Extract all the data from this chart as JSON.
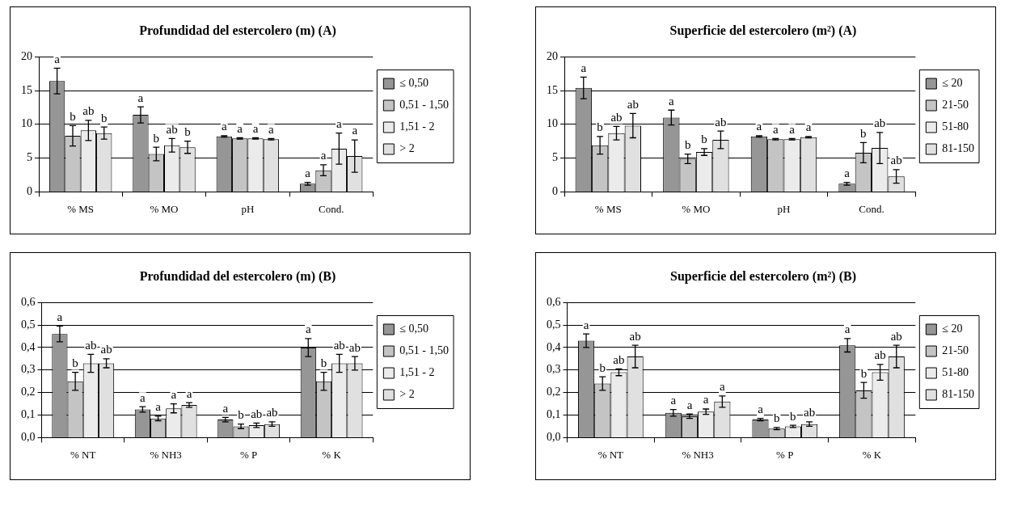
{
  "chart_data": [
    {
      "type": "bar",
      "title": "Profundidad del estercolero (m) (A)",
      "categories": [
        "% MS",
        "% MO",
        "pH",
        "Cond."
      ],
      "ylim": [
        0,
        20
      ],
      "yticks": [
        0,
        5,
        10,
        15,
        20
      ],
      "grid": "y",
      "legend": "right",
      "series": [
        {
          "name": "≤ 0,50",
          "color": "#969696",
          "values": [
            16.4,
            11.4,
            8.2,
            1.2
          ],
          "errors": [
            1.9,
            1.2,
            0.1,
            0.2
          ],
          "value_labels": [
            "a",
            "a",
            "a",
            "a"
          ]
        },
        {
          "name": "0,51 - 1,50",
          "color": "#c4c4c4",
          "values": [
            8.3,
            5.6,
            7.9,
            3.2
          ],
          "errors": [
            1.5,
            1.0,
            0.1,
            0.8
          ],
          "value_labels": [
            "b",
            "b",
            "a",
            "a"
          ]
        },
        {
          "name": "1,51 - 2",
          "color": "#ebebeb",
          "values": [
            9.1,
            6.9,
            7.9,
            6.4
          ],
          "errors": [
            1.5,
            1.0,
            0.1,
            2.3
          ],
          "value_labels": [
            "ab",
            "ab",
            "a",
            "a"
          ]
        },
        {
          "name": "> 2",
          "color": "#e0e0e0",
          "values": [
            8.7,
            6.6,
            7.8,
            5.3
          ],
          "errors": [
            0.9,
            0.9,
            0.1,
            2.4
          ],
          "value_labels": [
            "b",
            "b",
            "a",
            "a"
          ]
        }
      ]
    },
    {
      "type": "bar",
      "title": "Superficie del estercolero (m²) (A)",
      "categories": [
        "% MS",
        "% MO",
        "pH",
        "Cond."
      ],
      "ylim": [
        0,
        20
      ],
      "yticks": [
        0,
        5,
        10,
        15,
        20
      ],
      "grid": "y",
      "legend": "right",
      "series": [
        {
          "name": "≤ 20",
          "color": "#969696",
          "values": [
            15.4,
            11.0,
            8.2,
            1.2
          ],
          "errors": [
            1.6,
            1.1,
            0.1,
            0.2
          ],
          "value_labels": [
            "a",
            "a",
            "a",
            "a"
          ]
        },
        {
          "name": "21-50",
          "color": "#c4c4c4",
          "values": [
            6.9,
            4.9,
            7.8,
            5.8
          ],
          "errors": [
            1.3,
            0.7,
            0.1,
            1.5
          ],
          "value_labels": [
            "b",
            "b",
            "a",
            "b"
          ]
        },
        {
          "name": "51-80",
          "color": "#ebebeb",
          "values": [
            8.7,
            5.9,
            7.8,
            6.5
          ],
          "errors": [
            1.0,
            0.5,
            0.1,
            2.3
          ],
          "value_labels": [
            "ab",
            "b",
            "a",
            "ab"
          ]
        },
        {
          "name": "81-150",
          "color": "#e0e0e0",
          "values": [
            9.8,
            7.7,
            8.1,
            2.3
          ],
          "errors": [
            1.8,
            1.3,
            0.1,
            1.0
          ],
          "value_labels": [
            "ab",
            "ab",
            "a",
            "ab"
          ]
        }
      ]
    },
    {
      "type": "bar",
      "title": "Profundidad del estercolero (m) (B)",
      "categories": [
        "% NT",
        "% NH3",
        "% P",
        "% K"
      ],
      "ylim": [
        0,
        0.6
      ],
      "yticks": [
        {
          "value": 0,
          "label": "0,0"
        },
        {
          "value": 0.1,
          "label": "0,1"
        },
        {
          "value": 0.2,
          "label": "0,2"
        },
        {
          "value": 0.3,
          "label": "0,3"
        },
        {
          "value": 0.4,
          "label": "0,4"
        },
        {
          "value": 0.5,
          "label": "0,5"
        },
        {
          "value": 0.6,
          "label": "0,6"
        }
      ],
      "grid": "y",
      "legend": "right",
      "series": [
        {
          "name": "≤ 0,50",
          "color": "#969696",
          "values": [
            0.46,
            0.125,
            0.08,
            0.4
          ],
          "errors": [
            0.035,
            0.012,
            0.01,
            0.04
          ],
          "value_labels": [
            "a",
            "a",
            "a",
            "a"
          ]
        },
        {
          "name": "0,51 - 1,50",
          "color": "#c4c4c4",
          "values": [
            0.25,
            0.085,
            0.05,
            0.25
          ],
          "errors": [
            0.04,
            0.01,
            0.01,
            0.04
          ],
          "value_labels": [
            "b",
            "a",
            "b",
            "b"
          ]
        },
        {
          "name": "1,51 - 2",
          "color": "#ebebeb",
          "values": [
            0.33,
            0.13,
            0.055,
            0.33
          ],
          "errors": [
            0.04,
            0.02,
            0.01,
            0.04
          ],
          "value_labels": [
            "ab",
            "a",
            "ab",
            "ab"
          ]
        },
        {
          "name": "> 2",
          "color": "#e0e0e0",
          "values": [
            0.33,
            0.145,
            0.06,
            0.33
          ],
          "errors": [
            0.02,
            0.01,
            0.01,
            0.03
          ],
          "value_labels": [
            "ab",
            "a",
            "ab",
            "ab"
          ]
        }
      ]
    },
    {
      "type": "bar",
      "title": "Superficie del estercolero (m²) (B)",
      "categories": [
        "% NT",
        "% NH3",
        "% P",
        "% K"
      ],
      "ylim": [
        0,
        0.6
      ],
      "yticks": [
        {
          "value": 0,
          "label": "0,0"
        },
        {
          "value": 0.1,
          "label": "0,1"
        },
        {
          "value": 0.2,
          "label": "0,2"
        },
        {
          "value": 0.3,
          "label": "0,3"
        },
        {
          "value": 0.4,
          "label": "0,4"
        },
        {
          "value": 0.5,
          "label": "0,5"
        },
        {
          "value": 0.6,
          "label": "0,6"
        }
      ],
      "grid": "y",
      "legend": "right",
      "series": [
        {
          "name": "≤ 20",
          "color": "#969696",
          "values": [
            0.43,
            0.11,
            0.08,
            0.41
          ],
          "errors": [
            0.03,
            0.015,
            0.005,
            0.03
          ],
          "value_labels": [
            "a",
            "a",
            "a",
            "a"
          ]
        },
        {
          "name": "21-50",
          "color": "#c4c4c4",
          "values": [
            0.24,
            0.095,
            0.04,
            0.21
          ],
          "errors": [
            0.03,
            0.01,
            0.005,
            0.035
          ],
          "value_labels": [
            "b",
            "a",
            "b",
            "b"
          ]
        },
        {
          "name": "51-80",
          "color": "#ebebeb",
          "values": [
            0.29,
            0.115,
            0.05,
            0.29
          ],
          "errors": [
            0.015,
            0.012,
            0.005,
            0.035
          ],
          "value_labels": [
            "ab",
            "a",
            "b",
            "ab"
          ]
        },
        {
          "name": "81-150",
          "color": "#e0e0e0",
          "values": [
            0.36,
            0.16,
            0.06,
            0.36
          ],
          "errors": [
            0.05,
            0.025,
            0.01,
            0.05
          ],
          "value_labels": [
            "ab",
            "a",
            "ab",
            "ab"
          ]
        }
      ]
    }
  ]
}
